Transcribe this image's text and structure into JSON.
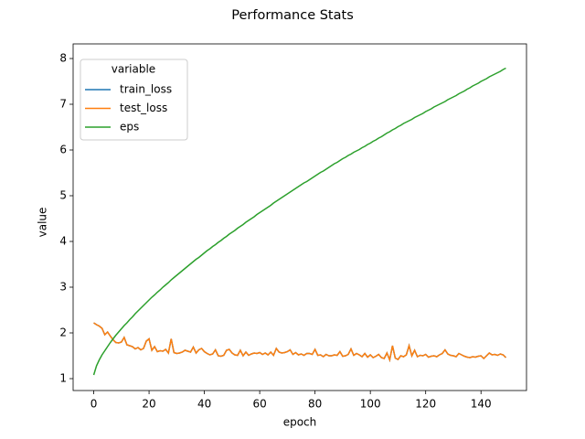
{
  "chart_data": {
    "type": "line",
    "title": "Performance Stats",
    "xlabel": "epoch",
    "ylabel": "value",
    "legend_title": "variable",
    "legend_loc": "upper left",
    "x": [
      0,
      1,
      2,
      3,
      4,
      5,
      6,
      7,
      8,
      9,
      10,
      11,
      12,
      13,
      14,
      15,
      16,
      17,
      18,
      19,
      20,
      21,
      22,
      23,
      24,
      25,
      26,
      27,
      28,
      29,
      30,
      31,
      32,
      33,
      34,
      35,
      36,
      37,
      38,
      39,
      40,
      41,
      42,
      43,
      44,
      45,
      46,
      47,
      48,
      49,
      50,
      51,
      52,
      53,
      54,
      55,
      56,
      57,
      58,
      59,
      60,
      61,
      62,
      63,
      64,
      65,
      66,
      67,
      68,
      69,
      70,
      71,
      72,
      73,
      74,
      75,
      76,
      77,
      78,
      79,
      80,
      81,
      82,
      83,
      84,
      85,
      86,
      87,
      88,
      89,
      90,
      91,
      92,
      93,
      94,
      95,
      96,
      97,
      98,
      99,
      100,
      101,
      102,
      103,
      104,
      105,
      106,
      107,
      108,
      109,
      110,
      111,
      112,
      113,
      114,
      115,
      116,
      117,
      118,
      119,
      120,
      121,
      122,
      123,
      124,
      125,
      126,
      127,
      128,
      129,
      130,
      131,
      132,
      133,
      134,
      135,
      136,
      137,
      138,
      139,
      140,
      141,
      142,
      143,
      144,
      145,
      146,
      147,
      148,
      149
    ],
    "series": [
      {
        "name": "train_loss",
        "color": "#1f77b4",
        "values": [
          2.22,
          2.18,
          2.15,
          2.1,
          1.96,
          2.02,
          1.93,
          1.85,
          1.79,
          1.78,
          1.8,
          1.9,
          1.74,
          1.72,
          1.7,
          1.65,
          1.68,
          1.63,
          1.66,
          1.82,
          1.87,
          1.62,
          1.7,
          1.59,
          1.61,
          1.6,
          1.64,
          1.56,
          1.87,
          1.57,
          1.55,
          1.56,
          1.58,
          1.62,
          1.6,
          1.58,
          1.69,
          1.56,
          1.63,
          1.66,
          1.59,
          1.55,
          1.52,
          1.54,
          1.63,
          1.5,
          1.49,
          1.51,
          1.62,
          1.64,
          1.56,
          1.52,
          1.51,
          1.62,
          1.5,
          1.58,
          1.51,
          1.54,
          1.56,
          1.55,
          1.57,
          1.53,
          1.56,
          1.52,
          1.58,
          1.51,
          1.66,
          1.58,
          1.56,
          1.57,
          1.59,
          1.63,
          1.53,
          1.57,
          1.52,
          1.54,
          1.51,
          1.55,
          1.55,
          1.53,
          1.64,
          1.51,
          1.52,
          1.48,
          1.53,
          1.5,
          1.5,
          1.52,
          1.51,
          1.59,
          1.49,
          1.5,
          1.53,
          1.65,
          1.51,
          1.55,
          1.52,
          1.48,
          1.55,
          1.47,
          1.52,
          1.46,
          1.49,
          1.53,
          1.46,
          1.44,
          1.56,
          1.41,
          1.72,
          1.45,
          1.42,
          1.5,
          1.48,
          1.52,
          1.72,
          1.5,
          1.62,
          1.48,
          1.51,
          1.5,
          1.53,
          1.47,
          1.49,
          1.5,
          1.48,
          1.52,
          1.55,
          1.63,
          1.54,
          1.51,
          1.5,
          1.48,
          1.55,
          1.52,
          1.49,
          1.47,
          1.46,
          1.48,
          1.47,
          1.49,
          1.5,
          1.44,
          1.5,
          1.56,
          1.52,
          1.53,
          1.51,
          1.54,
          1.52,
          1.46
        ]
      },
      {
        "name": "test_loss",
        "color": "#ff7f0e",
        "values": [
          2.22,
          2.18,
          2.15,
          2.1,
          1.96,
          2.02,
          1.93,
          1.85,
          1.79,
          1.78,
          1.8,
          1.9,
          1.74,
          1.72,
          1.7,
          1.65,
          1.68,
          1.63,
          1.66,
          1.82,
          1.87,
          1.62,
          1.7,
          1.59,
          1.61,
          1.6,
          1.64,
          1.56,
          1.87,
          1.57,
          1.55,
          1.56,
          1.58,
          1.62,
          1.6,
          1.58,
          1.69,
          1.56,
          1.63,
          1.66,
          1.59,
          1.55,
          1.52,
          1.54,
          1.63,
          1.5,
          1.49,
          1.51,
          1.62,
          1.64,
          1.56,
          1.52,
          1.51,
          1.62,
          1.5,
          1.58,
          1.51,
          1.54,
          1.56,
          1.55,
          1.57,
          1.53,
          1.56,
          1.52,
          1.58,
          1.51,
          1.66,
          1.58,
          1.56,
          1.57,
          1.59,
          1.63,
          1.53,
          1.57,
          1.52,
          1.54,
          1.51,
          1.55,
          1.55,
          1.53,
          1.64,
          1.51,
          1.52,
          1.48,
          1.53,
          1.5,
          1.5,
          1.52,
          1.51,
          1.59,
          1.49,
          1.5,
          1.53,
          1.65,
          1.51,
          1.55,
          1.52,
          1.48,
          1.55,
          1.47,
          1.52,
          1.46,
          1.49,
          1.53,
          1.46,
          1.44,
          1.56,
          1.41,
          1.72,
          1.45,
          1.42,
          1.5,
          1.48,
          1.52,
          1.72,
          1.5,
          1.62,
          1.48,
          1.51,
          1.5,
          1.53,
          1.47,
          1.49,
          1.5,
          1.48,
          1.52,
          1.55,
          1.63,
          1.54,
          1.51,
          1.5,
          1.48,
          1.55,
          1.52,
          1.49,
          1.47,
          1.46,
          1.48,
          1.47,
          1.49,
          1.5,
          1.44,
          1.5,
          1.56,
          1.52,
          1.53,
          1.51,
          1.54,
          1.52,
          1.46
        ]
      },
      {
        "name": "eps",
        "color": "#2ca02c",
        "values": [
          1.08,
          1.28,
          1.41,
          1.52,
          1.61,
          1.7,
          1.79,
          1.87,
          1.95,
          2.02,
          2.09,
          2.16,
          2.22,
          2.29,
          2.35,
          2.42,
          2.48,
          2.54,
          2.6,
          2.66,
          2.72,
          2.78,
          2.83,
          2.89,
          2.94,
          3.0,
          3.05,
          3.1,
          3.16,
          3.21,
          3.26,
          3.31,
          3.36,
          3.41,
          3.46,
          3.51,
          3.56,
          3.61,
          3.65,
          3.7,
          3.75,
          3.8,
          3.84,
          3.89,
          3.93,
          3.98,
          4.02,
          4.07,
          4.11,
          4.16,
          4.2,
          4.24,
          4.29,
          4.33,
          4.37,
          4.42,
          4.46,
          4.5,
          4.54,
          4.59,
          4.63,
          4.67,
          4.71,
          4.75,
          4.79,
          4.84,
          4.88,
          4.92,
          4.96,
          5.0,
          5.04,
          5.08,
          5.12,
          5.16,
          5.2,
          5.24,
          5.28,
          5.31,
          5.35,
          5.39,
          5.43,
          5.47,
          5.51,
          5.54,
          5.58,
          5.62,
          5.66,
          5.7,
          5.73,
          5.77,
          5.81,
          5.84,
          5.88,
          5.91,
          5.95,
          5.98,
          6.01,
          6.05,
          6.08,
          6.12,
          6.15,
          6.19,
          6.22,
          6.26,
          6.29,
          6.33,
          6.37,
          6.4,
          6.44,
          6.47,
          6.51,
          6.54,
          6.58,
          6.61,
          6.64,
          6.67,
          6.71,
          6.74,
          6.77,
          6.8,
          6.84,
          6.87,
          6.9,
          6.94,
          6.97,
          7.0,
          7.03,
          7.06,
          7.1,
          7.13,
          7.16,
          7.19,
          7.23,
          7.26,
          7.29,
          7.33,
          7.36,
          7.4,
          7.43,
          7.46,
          7.5,
          7.53,
          7.56,
          7.6,
          7.63,
          7.66,
          7.69,
          7.72,
          7.76,
          7.79
        ]
      }
    ],
    "xlim": [
      -7.45,
      156.45
    ],
    "xticks": [
      0,
      20,
      40,
      60,
      80,
      100,
      120,
      140
    ],
    "ylim": [
      0.74,
      8.32
    ],
    "yticks": [
      1,
      2,
      3,
      4,
      5,
      6,
      7,
      8
    ]
  }
}
